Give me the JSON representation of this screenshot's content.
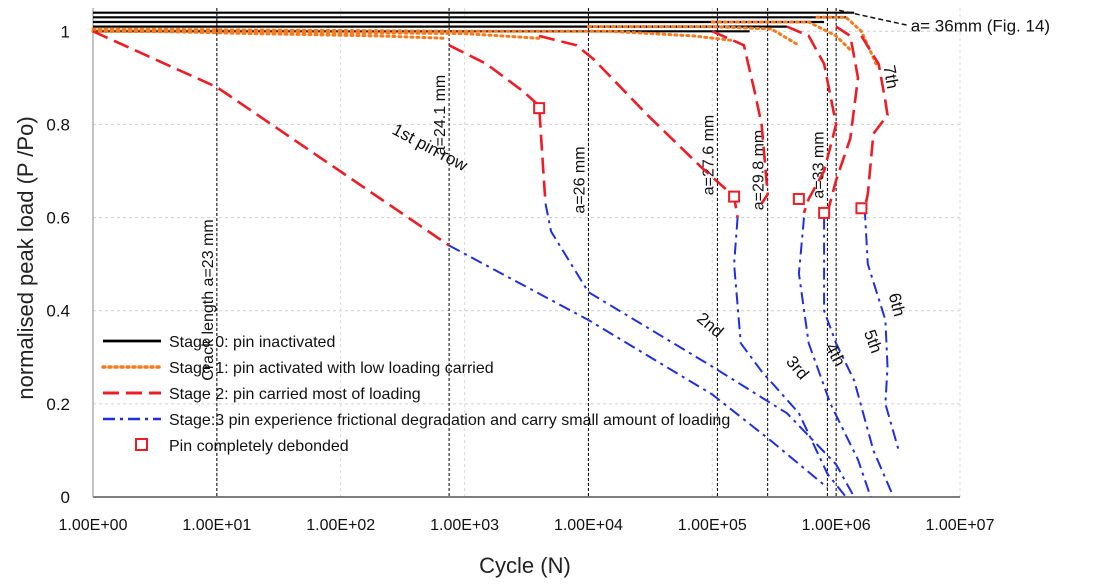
{
  "chart_data": {
    "type": "line",
    "xlabel": "Cycle (N)",
    "ylabel": "normalised peak load (P /Po)",
    "x_scale": "log",
    "xlim": [
      1,
      10000000
    ],
    "ylim": [
      0,
      1.05
    ],
    "x_tick_labels": [
      "1.00E+00",
      "1.00E+01",
      "1.00E+02",
      "1.00E+03",
      "1.00E+04",
      "1.00E+05",
      "1.00E+06",
      "1.00E+07"
    ],
    "x_tick_values": [
      1,
      10,
      100,
      1000,
      10000,
      100000,
      1000000,
      10000000
    ],
    "y_ticks": [
      0,
      0.2,
      0.4,
      0.6,
      0.8,
      1
    ],
    "y_tick_labels": [
      "0",
      "0.2",
      "0.4",
      "0.6",
      "0.8",
      "1"
    ],
    "grid": true,
    "legend_position": "bottom-left",
    "legend": [
      {
        "label": "Stage 0: pin inactivated",
        "style": "solid",
        "color": "#000000"
      },
      {
        "label": "Stage 1: pin activated with low loading carried",
        "style": "dotted",
        "color": "#f47b20"
      },
      {
        "label": "Stage 2: pin carried most of loading",
        "style": "dashed",
        "color": "#ee1c25"
      },
      {
        "label": "Stage:3 pin experience frictional degradation and carry small amount of loading",
        "style": "dashdot",
        "color": "#1f2fe0"
      },
      {
        "label": "Pin completely debonded",
        "style": "marker",
        "color": "#ee1c25"
      }
    ],
    "vertical_lines": [
      {
        "x": 10,
        "label": "Crack length a=23 mm"
      },
      {
        "x": 750,
        "label": "a=24.1 mm"
      },
      {
        "x": 10000,
        "label": "a=26 mm"
      },
      {
        "x": 110000,
        "label": "a=27.6 mm"
      },
      {
        "x": 280000,
        "label": "a=29.8 mm"
      },
      {
        "x": 850000,
        "label": "a=33 mm"
      },
      {
        "x": 1000000,
        "label": ""
      }
    ],
    "annotations": [
      {
        "text": "1st pin row",
        "x": 500,
        "y": 0.74
      },
      {
        "text": "2nd",
        "x": 90000,
        "y": 0.36
      },
      {
        "text": "3rd",
        "x": 450000,
        "y": 0.27
      },
      {
        "text": "4th",
        "x": 900000,
        "y": 0.3
      },
      {
        "text": "5th",
        "x": 1800000,
        "y": 0.33
      },
      {
        "text": "6th",
        "x": 2800000,
        "y": 0.41
      },
      {
        "text": "7th",
        "x": 2500000,
        "y": 0.9
      },
      {
        "text": "a= 36mm (Fig. 14)",
        "x": 4000000,
        "y": 1.0
      }
    ],
    "series": [
      {
        "name": "Stage 0: pin inactivated",
        "style": "solid",
        "color": "#000000",
        "lines": [
          [
            [
              1,
              1.0
            ],
            [
              200000,
              1.0
            ]
          ],
          [
            [
              1,
              1.01
            ],
            [
              400000,
              1.01
            ]
          ],
          [
            [
              1,
              1.02
            ],
            [
              800000,
              1.02
            ]
          ],
          [
            [
              1,
              1.03
            ],
            [
              1200000,
              1.03
            ]
          ],
          [
            [
              1,
              1.04
            ],
            [
              1400000,
              1.04
            ]
          ]
        ]
      },
      {
        "name": "Stage 1: pin activated with low loading carried",
        "style": "dotted",
        "color": "#f47b20",
        "lines": [
          [
            [
              1,
              1.0
            ],
            [
              3,
              1.0
            ],
            [
              20,
              0.995
            ],
            [
              200,
              0.99
            ],
            [
              700,
              0.985
            ]
          ],
          [
            [
              1,
              1.0
            ],
            [
              50,
              0.998
            ],
            [
              1000,
              0.995
            ],
            [
              4000,
              0.985
            ]
          ],
          [
            [
              1,
              1.005
            ],
            [
              1000,
              1.0
            ],
            [
              15000,
              1.0
            ],
            [
              70000,
              0.99
            ],
            [
              150000,
              0.98
            ]
          ],
          [
            [
              10000,
              1.01
            ],
            [
              100000,
              1.01
            ],
            [
              300000,
              1.005
            ],
            [
              500000,
              0.97
            ]
          ],
          [
            [
              100000,
              1.02
            ],
            [
              600000,
              1.02
            ],
            [
              1000000,
              0.99
            ],
            [
              1300000,
              0.96
            ]
          ],
          [
            [
              700000,
              1.03
            ],
            [
              1200000,
              1.03
            ],
            [
              1600000,
              1.0
            ],
            [
              2100000,
              0.93
            ]
          ]
        ]
      },
      {
        "name": "Stage 2: pin carried most of loading",
        "style": "dashed",
        "color": "#ee1c25",
        "lines": [
          [
            [
              1,
              1.0
            ],
            [
              10,
              0.88
            ],
            [
              750,
              0.54
            ]
          ],
          [
            [
              750,
              0.97
            ],
            [
              1500,
              0.93
            ],
            [
              3000,
              0.87
            ],
            [
              4000,
              0.84
            ],
            [
              4300,
              0.71
            ],
            [
              4500,
              0.63
            ]
          ],
          [
            [
              4000,
              0.99
            ],
            [
              8000,
              0.97
            ],
            [
              11000,
              0.94
            ],
            [
              30000,
              0.82
            ],
            [
              80000,
              0.71
            ],
            [
              150000,
              0.645
            ],
            [
              160000,
              0.6
            ]
          ],
          [
            [
              100000,
              1.0
            ],
            [
              180000,
              0.97
            ],
            [
              220000,
              0.87
            ],
            [
              250000,
              0.8
            ],
            [
              280000,
              0.65
            ],
            [
              250000,
              0.63
            ]
          ],
          [
            [
              400000,
              1.01
            ],
            [
              600000,
              0.99
            ],
            [
              800000,
              0.93
            ],
            [
              1000000,
              0.8
            ],
            [
              800000,
              0.7
            ],
            [
              600000,
              0.64
            ],
            [
              550000,
              0.61
            ]
          ],
          [
            [
              1000000,
              1.01
            ],
            [
              1300000,
              0.99
            ],
            [
              1500000,
              0.9
            ],
            [
              1300000,
              0.77
            ],
            [
              1000000,
              0.68
            ],
            [
              850000,
              0.61
            ],
            [
              800000,
              0.6
            ]
          ],
          [
            [
              1600000,
              0.99
            ],
            [
              2200000,
              0.93
            ],
            [
              2500000,
              0.85
            ],
            [
              2600000,
              0.82
            ],
            [
              2000000,
              0.78
            ],
            [
              1800000,
              0.65
            ],
            [
              1700000,
              0.62
            ]
          ]
        ]
      },
      {
        "name": "Stage:3 pin experience frictional degradation and carry small amount of loading",
        "style": "dashdot",
        "color": "#1f2fe0",
        "lines": [
          [
            [
              750,
              0.54
            ],
            [
              10000,
              0.38
            ],
            [
              100000,
              0.22
            ],
            [
              300000,
              0.12
            ],
            [
              850000,
              0.02
            ]
          ],
          [
            [
              4500,
              0.63
            ],
            [
              5000,
              0.57
            ],
            [
              10000,
              0.44
            ],
            [
              100000,
              0.28
            ],
            [
              400000,
              0.18
            ],
            [
              1000000,
              0.07
            ],
            [
              1400000,
              0.0
            ]
          ],
          [
            [
              160000,
              0.6
            ],
            [
              150000,
              0.5
            ],
            [
              170000,
              0.33
            ],
            [
              250000,
              0.27
            ],
            [
              500000,
              0.18
            ],
            [
              850000,
              0.05
            ],
            [
              1200000,
              0.0
            ]
          ],
          [
            [
              550000,
              0.6
            ],
            [
              500000,
              0.48
            ],
            [
              600000,
              0.33
            ],
            [
              900000,
              0.2
            ],
            [
              1500000,
              0.08
            ],
            [
              1900000,
              0.0
            ]
          ],
          [
            [
              800000,
              0.6
            ],
            [
              800000,
              0.4
            ],
            [
              1000000,
              0.33
            ],
            [
              1400000,
              0.25
            ],
            [
              2000000,
              0.1
            ],
            [
              2800000,
              0.01
            ]
          ],
          [
            [
              1700000,
              0.62
            ],
            [
              1800000,
              0.5
            ],
            [
              2500000,
              0.38
            ],
            [
              2600000,
              0.28
            ],
            [
              2500000,
              0.2
            ],
            [
              3200000,
              0.1
            ]
          ]
        ]
      },
      {
        "name": "Pin completely debonded",
        "style": "marker",
        "color": "#ee1c25",
        "points": [
          [
            4000,
            0.835
          ],
          [
            150000,
            0.645
          ],
          [
            500000,
            0.64
          ],
          [
            800000,
            0.61
          ],
          [
            1600000,
            0.62
          ]
        ]
      }
    ]
  }
}
